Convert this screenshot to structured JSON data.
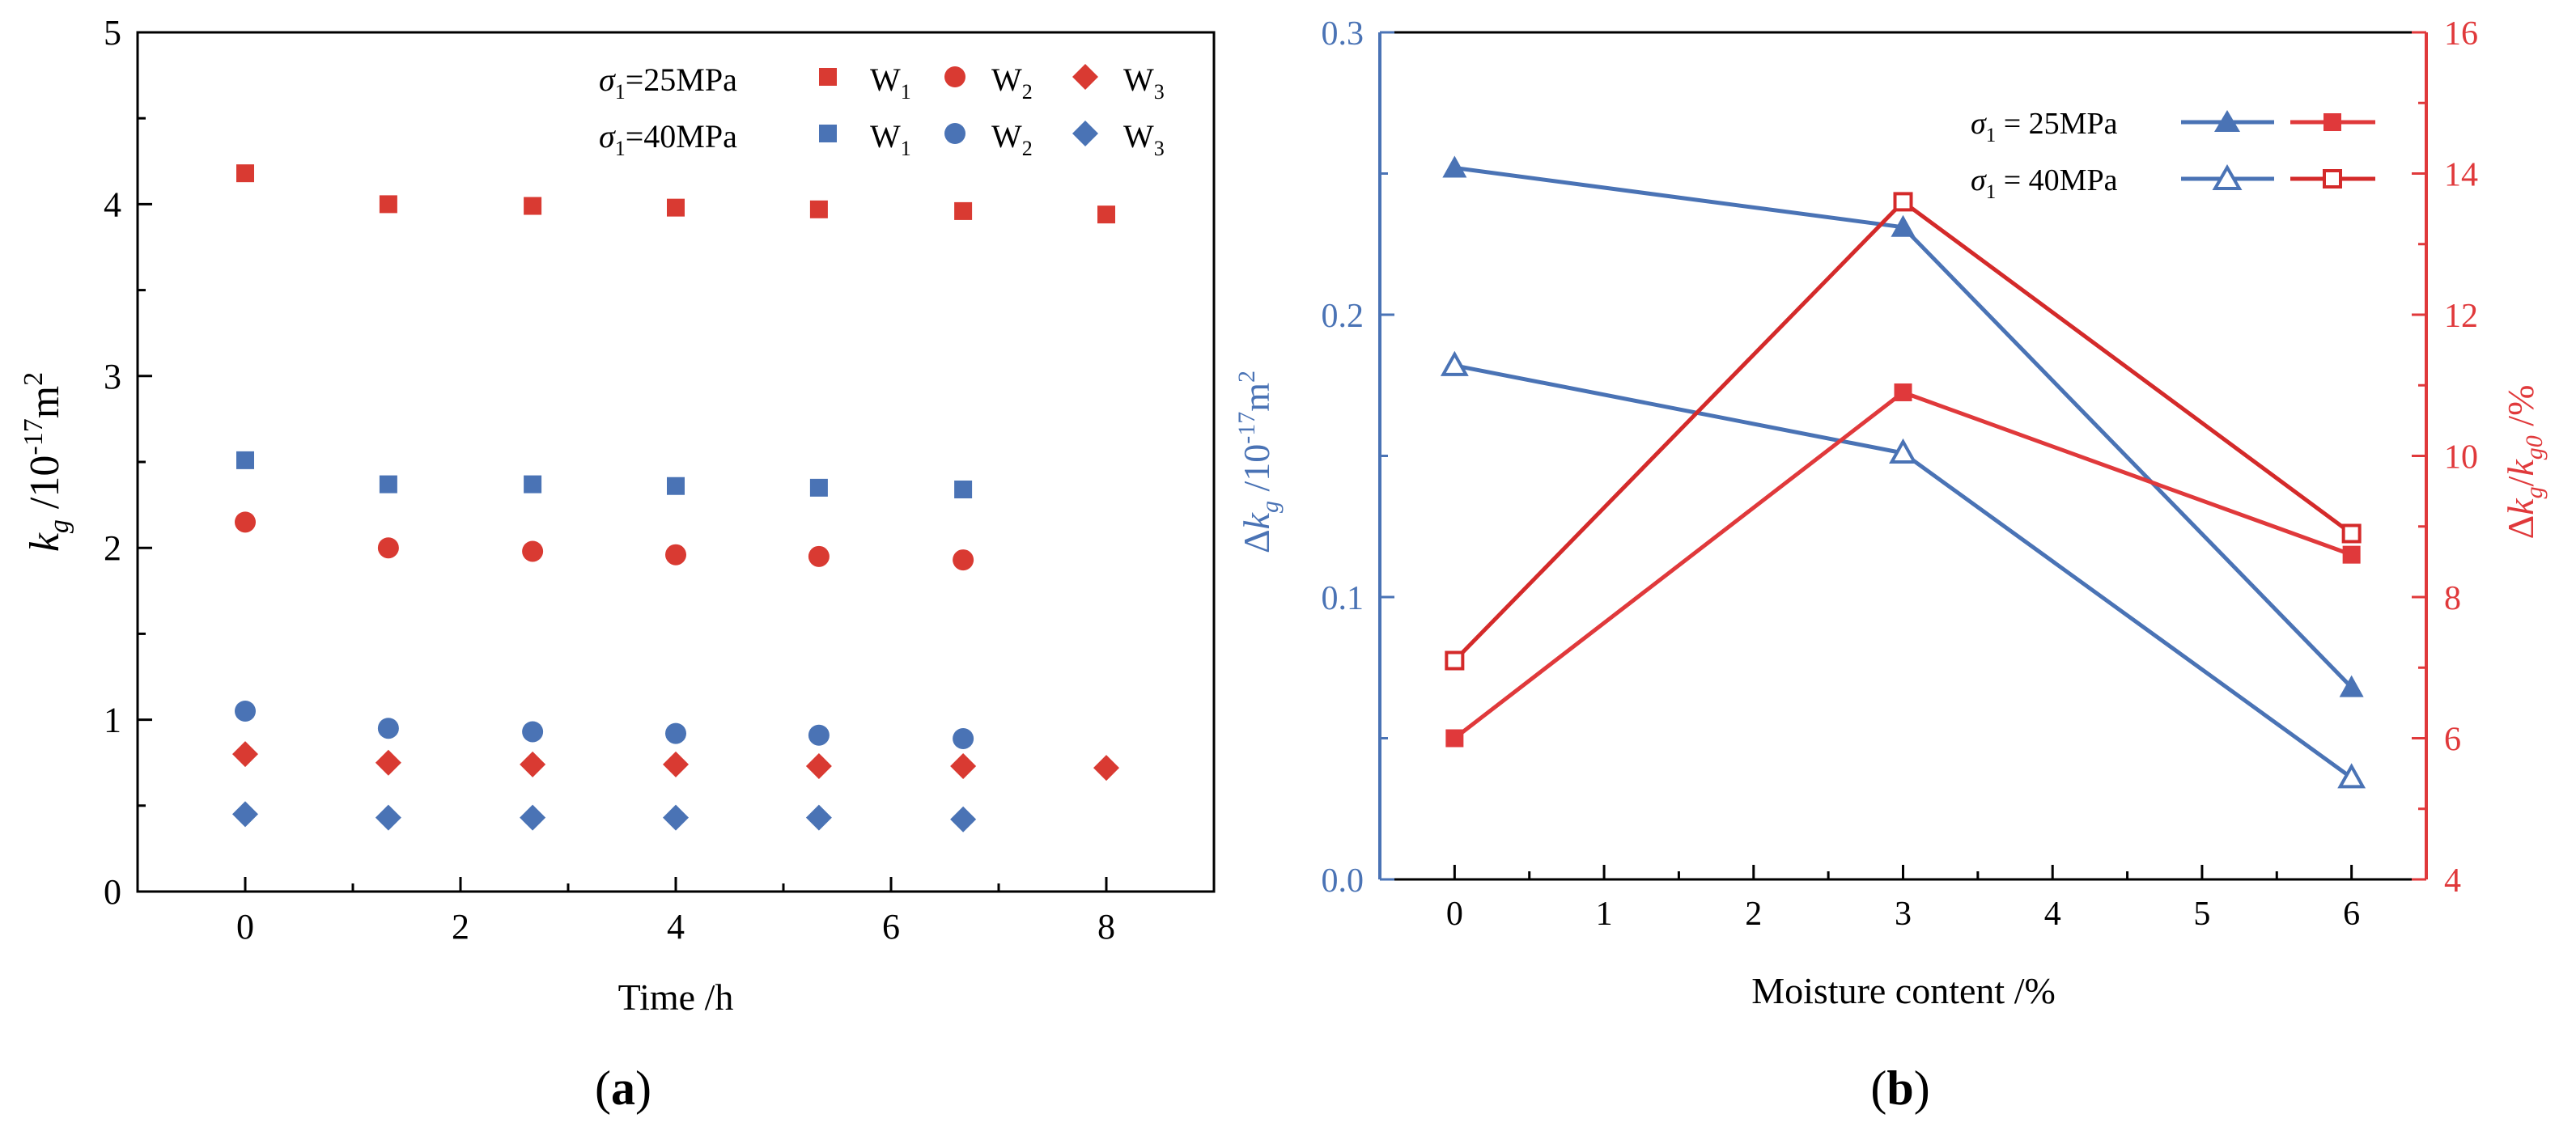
{
  "chart_data": [
    {
      "panel": "(a)",
      "type": "scatter",
      "xlabel": "Time /h",
      "ylabel": "k_g /10^-17 m^2",
      "xlim": [
        -1,
        9
      ],
      "ylim": [
        0,
        5
      ],
      "xticks": [
        0,
        2,
        4,
        6,
        8
      ],
      "yticks": [
        0,
        1,
        2,
        3,
        4,
        5
      ],
      "legend": {
        "row_labels": [
          "σ1=25MPa",
          "σ1=40MPa"
        ],
        "series_labels": [
          "W1",
          "W2",
          "W3"
        ]
      },
      "series": [
        {
          "name": "σ1=25MPa W1",
          "stress": "25MPa",
          "group": "W1",
          "marker": "square",
          "color": "#d93a32",
          "x": [
            0,
            1.33,
            2.67,
            4,
            5.33,
            6.67,
            8
          ],
          "y": [
            4.18,
            4.0,
            3.99,
            3.98,
            3.97,
            3.96,
            3.94
          ]
        },
        {
          "name": "σ1=25MPa W2",
          "stress": "25MPa",
          "group": "W2",
          "marker": "circle",
          "color": "#d93a32",
          "x": [
            0,
            1.33,
            2.67,
            4,
            5.33,
            6.67
          ],
          "y": [
            2.15,
            2.0,
            1.98,
            1.96,
            1.95,
            1.93
          ]
        },
        {
          "name": "σ1=25MPa W3",
          "stress": "25MPa",
          "group": "W3",
          "marker": "diamond",
          "color": "#d93a32",
          "x": [
            0,
            1.33,
            2.67,
            4,
            5.33,
            6.67,
            8
          ],
          "y": [
            0.8,
            0.75,
            0.74,
            0.74,
            0.73,
            0.73,
            0.72
          ]
        },
        {
          "name": "σ1=40MPa W1",
          "stress": "40MPa",
          "group": "W1",
          "marker": "square",
          "color": "#4a73b5",
          "x": [
            0,
            1.33,
            2.67,
            4,
            5.33,
            6.67
          ],
          "y": [
            2.51,
            2.37,
            2.37,
            2.36,
            2.35,
            2.34
          ]
        },
        {
          "name": "σ1=40MPa W2",
          "stress": "40MPa",
          "group": "W2",
          "marker": "circle",
          "color": "#4a73b5",
          "x": [
            0,
            1.33,
            2.67,
            4,
            5.33,
            6.67
          ],
          "y": [
            1.05,
            0.95,
            0.93,
            0.92,
            0.91,
            0.89
          ]
        },
        {
          "name": "σ1=40MPa W3",
          "stress": "40MPa",
          "group": "W3",
          "marker": "diamond",
          "color": "#4a73b5",
          "x": [
            0,
            1.33,
            2.67,
            4,
            5.33,
            6.67
          ],
          "y": [
            0.45,
            0.43,
            0.43,
            0.43,
            0.43,
            0.42
          ]
        }
      ]
    },
    {
      "panel": "(b)",
      "type": "line",
      "xlabel": "Moisture content /%",
      "ylabel_left": "Δk_g /10^-17 m^2",
      "ylabel_right": "Δk_g/k_g0 /%",
      "xlim": [
        -0.5,
        6.5
      ],
      "xticks": [
        0,
        1,
        2,
        3,
        4,
        5,
        6
      ],
      "ylim_left": [
        0.0,
        0.3
      ],
      "yticks_left": [
        "0.0",
        "0.1",
        "0.2",
        "0.3"
      ],
      "ylim_right": [
        4,
        16
      ],
      "yticks_right": [
        4,
        6,
        8,
        10,
        12,
        14,
        16
      ],
      "left_axis_color": "#4a73b5",
      "right_axis_color": "#e0393b",
      "legend": {
        "row_labels": [
          "σ1 = 25MPa",
          "σ1 = 40MPa"
        ]
      },
      "series": [
        {
          "name": "σ1 = 25MPa Δk_g",
          "axis": "left",
          "marker": "triangle-filled",
          "color": "#4a73b5",
          "x": [
            0,
            3,
            6
          ],
          "y": [
            0.252,
            0.231,
            0.068
          ]
        },
        {
          "name": "σ1 = 40MPa Δk_g",
          "axis": "left",
          "marker": "triangle-open",
          "color": "#4a73b5",
          "x": [
            0,
            3,
            6
          ],
          "y": [
            0.182,
            0.151,
            0.036
          ]
        },
        {
          "name": "σ1 = 25MPa Δk_g/k_g0",
          "axis": "right",
          "marker": "square-filled",
          "color": "#e0393b",
          "x": [
            0,
            3,
            6
          ],
          "y": [
            6.0,
            10.9,
            8.6
          ]
        },
        {
          "name": "σ1 = 40MPa Δk_g/k_g0",
          "axis": "right",
          "marker": "square-open",
          "color": "#d42a2a",
          "x": [
            0,
            3,
            6
          ],
          "y": [
            7.1,
            13.6,
            8.9
          ]
        }
      ]
    }
  ]
}
